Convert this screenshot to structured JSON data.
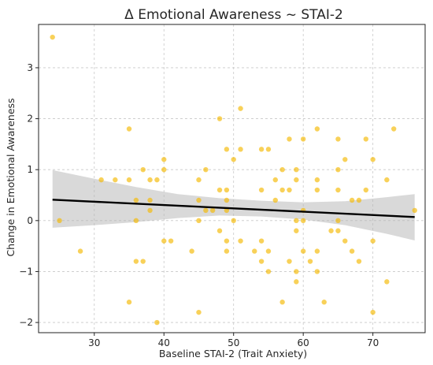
{
  "chart_data": {
    "type": "scatter",
    "title": "Δ Emotional Awareness ~ STAI-2",
    "xlabel": "Baseline STAI-2 (Trait Anxiety)",
    "ylabel": "Change in Emotional Awareness",
    "xlim": [
      22,
      77.5
    ],
    "ylim": [
      -2.2,
      3.85
    ],
    "xticks": [
      30,
      40,
      50,
      60,
      70
    ],
    "yticks": [
      -2,
      -1,
      0,
      1,
      2,
      3
    ],
    "grid": true,
    "colors": {
      "points": "#f5b800",
      "fit": "#000000",
      "band": "#b4b4b4"
    },
    "points": [
      [
        24,
        3.6
      ],
      [
        25,
        0.0
      ],
      [
        28,
        -0.6
      ],
      [
        31,
        0.8
      ],
      [
        33,
        0.8
      ],
      [
        35,
        1.8
      ],
      [
        35,
        0.8
      ],
      [
        35,
        -1.6
      ],
      [
        36,
        0.4
      ],
      [
        36,
        0.0
      ],
      [
        36,
        -0.8
      ],
      [
        37,
        1.0
      ],
      [
        37,
        -0.8
      ],
      [
        38,
        0.8
      ],
      [
        38,
        0.4
      ],
      [
        38,
        0.2
      ],
      [
        39,
        0.8
      ],
      [
        39,
        -2.0
      ],
      [
        40,
        1.2
      ],
      [
        40,
        1.0
      ],
      [
        40,
        -0.4
      ],
      [
        41,
        -0.4
      ],
      [
        44,
        -0.6
      ],
      [
        45,
        0.8
      ],
      [
        45,
        0.4
      ],
      [
        45,
        0.0
      ],
      [
        45,
        -1.8
      ],
      [
        46,
        1.0
      ],
      [
        46,
        0.2
      ],
      [
        47,
        0.2
      ],
      [
        48,
        2.0
      ],
      [
        48,
        0.6
      ],
      [
        48,
        -0.2
      ],
      [
        49,
        1.4
      ],
      [
        49,
        0.6
      ],
      [
        49,
        0.4
      ],
      [
        49,
        0.2
      ],
      [
        49,
        -0.4
      ],
      [
        49,
        -0.6
      ],
      [
        50,
        1.2
      ],
      [
        50,
        0.0
      ],
      [
        51,
        2.2
      ],
      [
        51,
        1.4
      ],
      [
        51,
        -0.4
      ],
      [
        53,
        -0.6
      ],
      [
        54,
        1.4
      ],
      [
        54,
        0.6
      ],
      [
        54,
        -0.4
      ],
      [
        54,
        -0.8
      ],
      [
        55,
        1.4
      ],
      [
        55,
        -0.6
      ],
      [
        55,
        -1.0
      ],
      [
        56,
        0.8
      ],
      [
        56,
        0.4
      ],
      [
        57,
        1.0
      ],
      [
        57,
        0.6
      ],
      [
        57,
        -1.6
      ],
      [
        58,
        1.6
      ],
      [
        58,
        0.6
      ],
      [
        58,
        -0.8
      ],
      [
        59,
        1.0
      ],
      [
        59,
        0.8
      ],
      [
        59,
        0.0
      ],
      [
        59,
        -0.2
      ],
      [
        59,
        -1.0
      ],
      [
        59,
        -1.2
      ],
      [
        60,
        1.6
      ],
      [
        60,
        0.2
      ],
      [
        60,
        0.0
      ],
      [
        60,
        -0.6
      ],
      [
        61,
        -0.8
      ],
      [
        62,
        1.8
      ],
      [
        62,
        0.8
      ],
      [
        62,
        0.6
      ],
      [
        62,
        -0.6
      ],
      [
        62,
        -1.0
      ],
      [
        63,
        -1.6
      ],
      [
        64,
        -0.2
      ],
      [
        65,
        1.6
      ],
      [
        65,
        1.0
      ],
      [
        65,
        0.6
      ],
      [
        65,
        0.0
      ],
      [
        65,
        -0.2
      ],
      [
        66,
        1.2
      ],
      [
        66,
        -0.4
      ],
      [
        67,
        0.4
      ],
      [
        67,
        -0.6
      ],
      [
        68,
        0.4
      ],
      [
        68,
        -0.8
      ],
      [
        69,
        1.6
      ],
      [
        69,
        0.6
      ],
      [
        70,
        1.2
      ],
      [
        70,
        -0.4
      ],
      [
        70,
        -1.8
      ],
      [
        72,
        0.8
      ],
      [
        72,
        -1.2
      ],
      [
        73,
        1.8
      ],
      [
        76,
        0.2
      ]
    ],
    "regression": {
      "x": [
        24,
        76
      ],
      "y": [
        0.41,
        0.07
      ]
    },
    "confidence_band": {
      "x": [
        24,
        30,
        36,
        42,
        48,
        54,
        60,
        66,
        72,
        76
      ],
      "upper": [
        0.99,
        0.82,
        0.66,
        0.52,
        0.44,
        0.39,
        0.36,
        0.38,
        0.46,
        0.52
      ],
      "lower": [
        -0.14,
        -0.09,
        -0.03,
        0.05,
        0.1,
        0.08,
        0.02,
        -0.09,
        -0.26,
        -0.39
      ]
    }
  }
}
